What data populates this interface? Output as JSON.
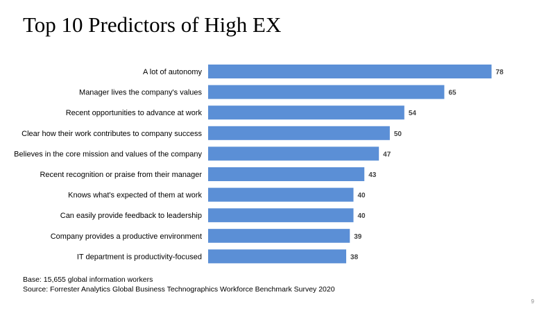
{
  "slide": {
    "title": "Top 10 Predictors of High EX",
    "base_note": "Base: 15,655 global information workers",
    "source_note": "Source: Forrester Analytics Global Business Technographics Workforce Benchmark Survey 2020",
    "page_number": "9"
  },
  "chart_data": {
    "type": "bar",
    "orientation": "horizontal",
    "title": "",
    "xlabel": "",
    "ylabel": "",
    "categories": [
      "A lot of autonomy",
      "Manager lives the company's values",
      "Recent opportunities to advance at work",
      "Clear how their work contributes to company success",
      "Believes in the core mission and values of the company",
      "Recent recognition or praise from their manager",
      "Knows what's expected of them at work",
      "Can easily provide feedback to leadership",
      "Company provides a productive environment",
      "IT department is productivity-focused"
    ],
    "values": [
      78,
      65,
      54,
      50,
      47,
      43,
      40,
      40,
      39,
      38
    ],
    "xlim": [
      0,
      80
    ],
    "grid": false,
    "legend": "none",
    "bar_color": "#5b8fd6"
  }
}
